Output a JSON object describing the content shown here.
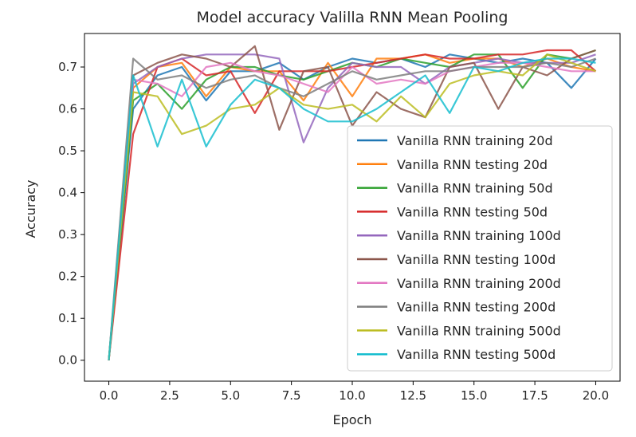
{
  "chart_data": {
    "type": "line",
    "title": "Model accuracy Valilla RNN Mean Pooling",
    "xlabel": "Epoch",
    "ylabel": "Accuracy",
    "xlim": [
      -1,
      21
    ],
    "ylim": [
      -0.05,
      0.78
    ],
    "x_ticks": [
      0.0,
      2.5,
      5.0,
      7.5,
      10.0,
      12.5,
      15.0,
      17.5,
      20.0
    ],
    "x_tick_labels": [
      "0.0",
      "2.5",
      "5.0",
      "7.5",
      "10.0",
      "12.5",
      "15.0",
      "17.5",
      "20.0"
    ],
    "y_ticks": [
      0.0,
      0.1,
      0.2,
      0.3,
      0.4,
      0.5,
      0.6,
      0.7
    ],
    "y_tick_labels": [
      "0.0",
      "0.1",
      "0.2",
      "0.3",
      "0.4",
      "0.5",
      "0.6",
      "0.7"
    ],
    "grid": false,
    "legend_position": "lower-right",
    "x": [
      0,
      1,
      2,
      3,
      4,
      5,
      6,
      7,
      8,
      9,
      10,
      11,
      12,
      13,
      14,
      15,
      16,
      17,
      18,
      19,
      20
    ],
    "series": [
      {
        "name": "Vanilla RNN training 20d",
        "color": "#1f77b4",
        "values": [
          0.0,
          0.6,
          0.68,
          0.7,
          0.62,
          0.69,
          0.69,
          0.71,
          0.67,
          0.7,
          0.72,
          0.71,
          0.72,
          0.7,
          0.73,
          0.72,
          0.71,
          0.72,
          0.71,
          0.65,
          0.72
        ]
      },
      {
        "name": "Vanilla RNN testing 20d",
        "color": "#ff7f0e",
        "values": [
          0.0,
          0.65,
          0.7,
          0.71,
          0.63,
          0.7,
          0.69,
          0.69,
          0.62,
          0.71,
          0.63,
          0.72,
          0.72,
          0.73,
          0.71,
          0.72,
          0.72,
          0.7,
          0.72,
          0.7,
          0.69
        ]
      },
      {
        "name": "Vanilla RNN training 50d",
        "color": "#2ca02c",
        "values": [
          0.0,
          0.62,
          0.66,
          0.6,
          0.67,
          0.7,
          0.7,
          0.68,
          0.67,
          0.69,
          0.71,
          0.7,
          0.72,
          0.71,
          0.7,
          0.73,
          0.73,
          0.65,
          0.73,
          0.72,
          0.74
        ]
      },
      {
        "name": "Vanilla RNN testing 50d",
        "color": "#d62728",
        "values": [
          0.0,
          0.54,
          0.7,
          0.72,
          0.68,
          0.69,
          0.59,
          0.69,
          0.69,
          0.69,
          0.7,
          0.71,
          0.72,
          0.73,
          0.72,
          0.72,
          0.73,
          0.73,
          0.74,
          0.74,
          0.69
        ]
      },
      {
        "name": "Vanilla RNN training 100d",
        "color": "#9467bd",
        "values": [
          0.0,
          0.66,
          0.7,
          0.72,
          0.73,
          0.73,
          0.73,
          0.72,
          0.52,
          0.65,
          0.71,
          0.7,
          0.7,
          0.66,
          0.7,
          0.71,
          0.72,
          0.71,
          0.71,
          0.71,
          0.73
        ]
      },
      {
        "name": "Vanilla RNN testing 100d",
        "color": "#8c564b",
        "values": [
          0.0,
          0.68,
          0.71,
          0.73,
          0.72,
          0.7,
          0.75,
          0.55,
          0.69,
          0.7,
          0.56,
          0.64,
          0.6,
          0.58,
          0.7,
          0.71,
          0.6,
          0.7,
          0.68,
          0.72,
          0.74
        ]
      },
      {
        "name": "Vanilla RNN training 200d",
        "color": "#e377c2",
        "values": [
          0.0,
          0.67,
          0.66,
          0.63,
          0.7,
          0.71,
          0.69,
          0.68,
          0.66,
          0.64,
          0.7,
          0.66,
          0.67,
          0.66,
          0.69,
          0.7,
          0.71,
          0.71,
          0.7,
          0.69,
          0.69
        ]
      },
      {
        "name": "Vanilla RNN testing 200d",
        "color": "#7f7f7f",
        "values": [
          0.0,
          0.72,
          0.67,
          0.68,
          0.65,
          0.67,
          0.68,
          0.65,
          0.63,
          0.66,
          0.69,
          0.67,
          0.68,
          0.69,
          0.69,
          0.7,
          0.7,
          0.7,
          0.71,
          0.7,
          0.72
        ]
      },
      {
        "name": "Vanilla RNN training 500d",
        "color": "#bcbd22",
        "values": [
          0.0,
          0.64,
          0.63,
          0.54,
          0.56,
          0.6,
          0.61,
          0.65,
          0.61,
          0.6,
          0.61,
          0.57,
          0.63,
          0.58,
          0.66,
          0.68,
          0.69,
          0.68,
          0.73,
          0.71,
          0.69
        ]
      },
      {
        "name": "Vanilla RNN testing 500d",
        "color": "#17becf",
        "values": [
          0.0,
          0.68,
          0.51,
          0.67,
          0.51,
          0.61,
          0.67,
          0.65,
          0.6,
          0.57,
          0.57,
          0.6,
          0.64,
          0.68,
          0.59,
          0.7,
          0.69,
          0.71,
          0.72,
          0.72,
          0.71
        ]
      }
    ]
  }
}
